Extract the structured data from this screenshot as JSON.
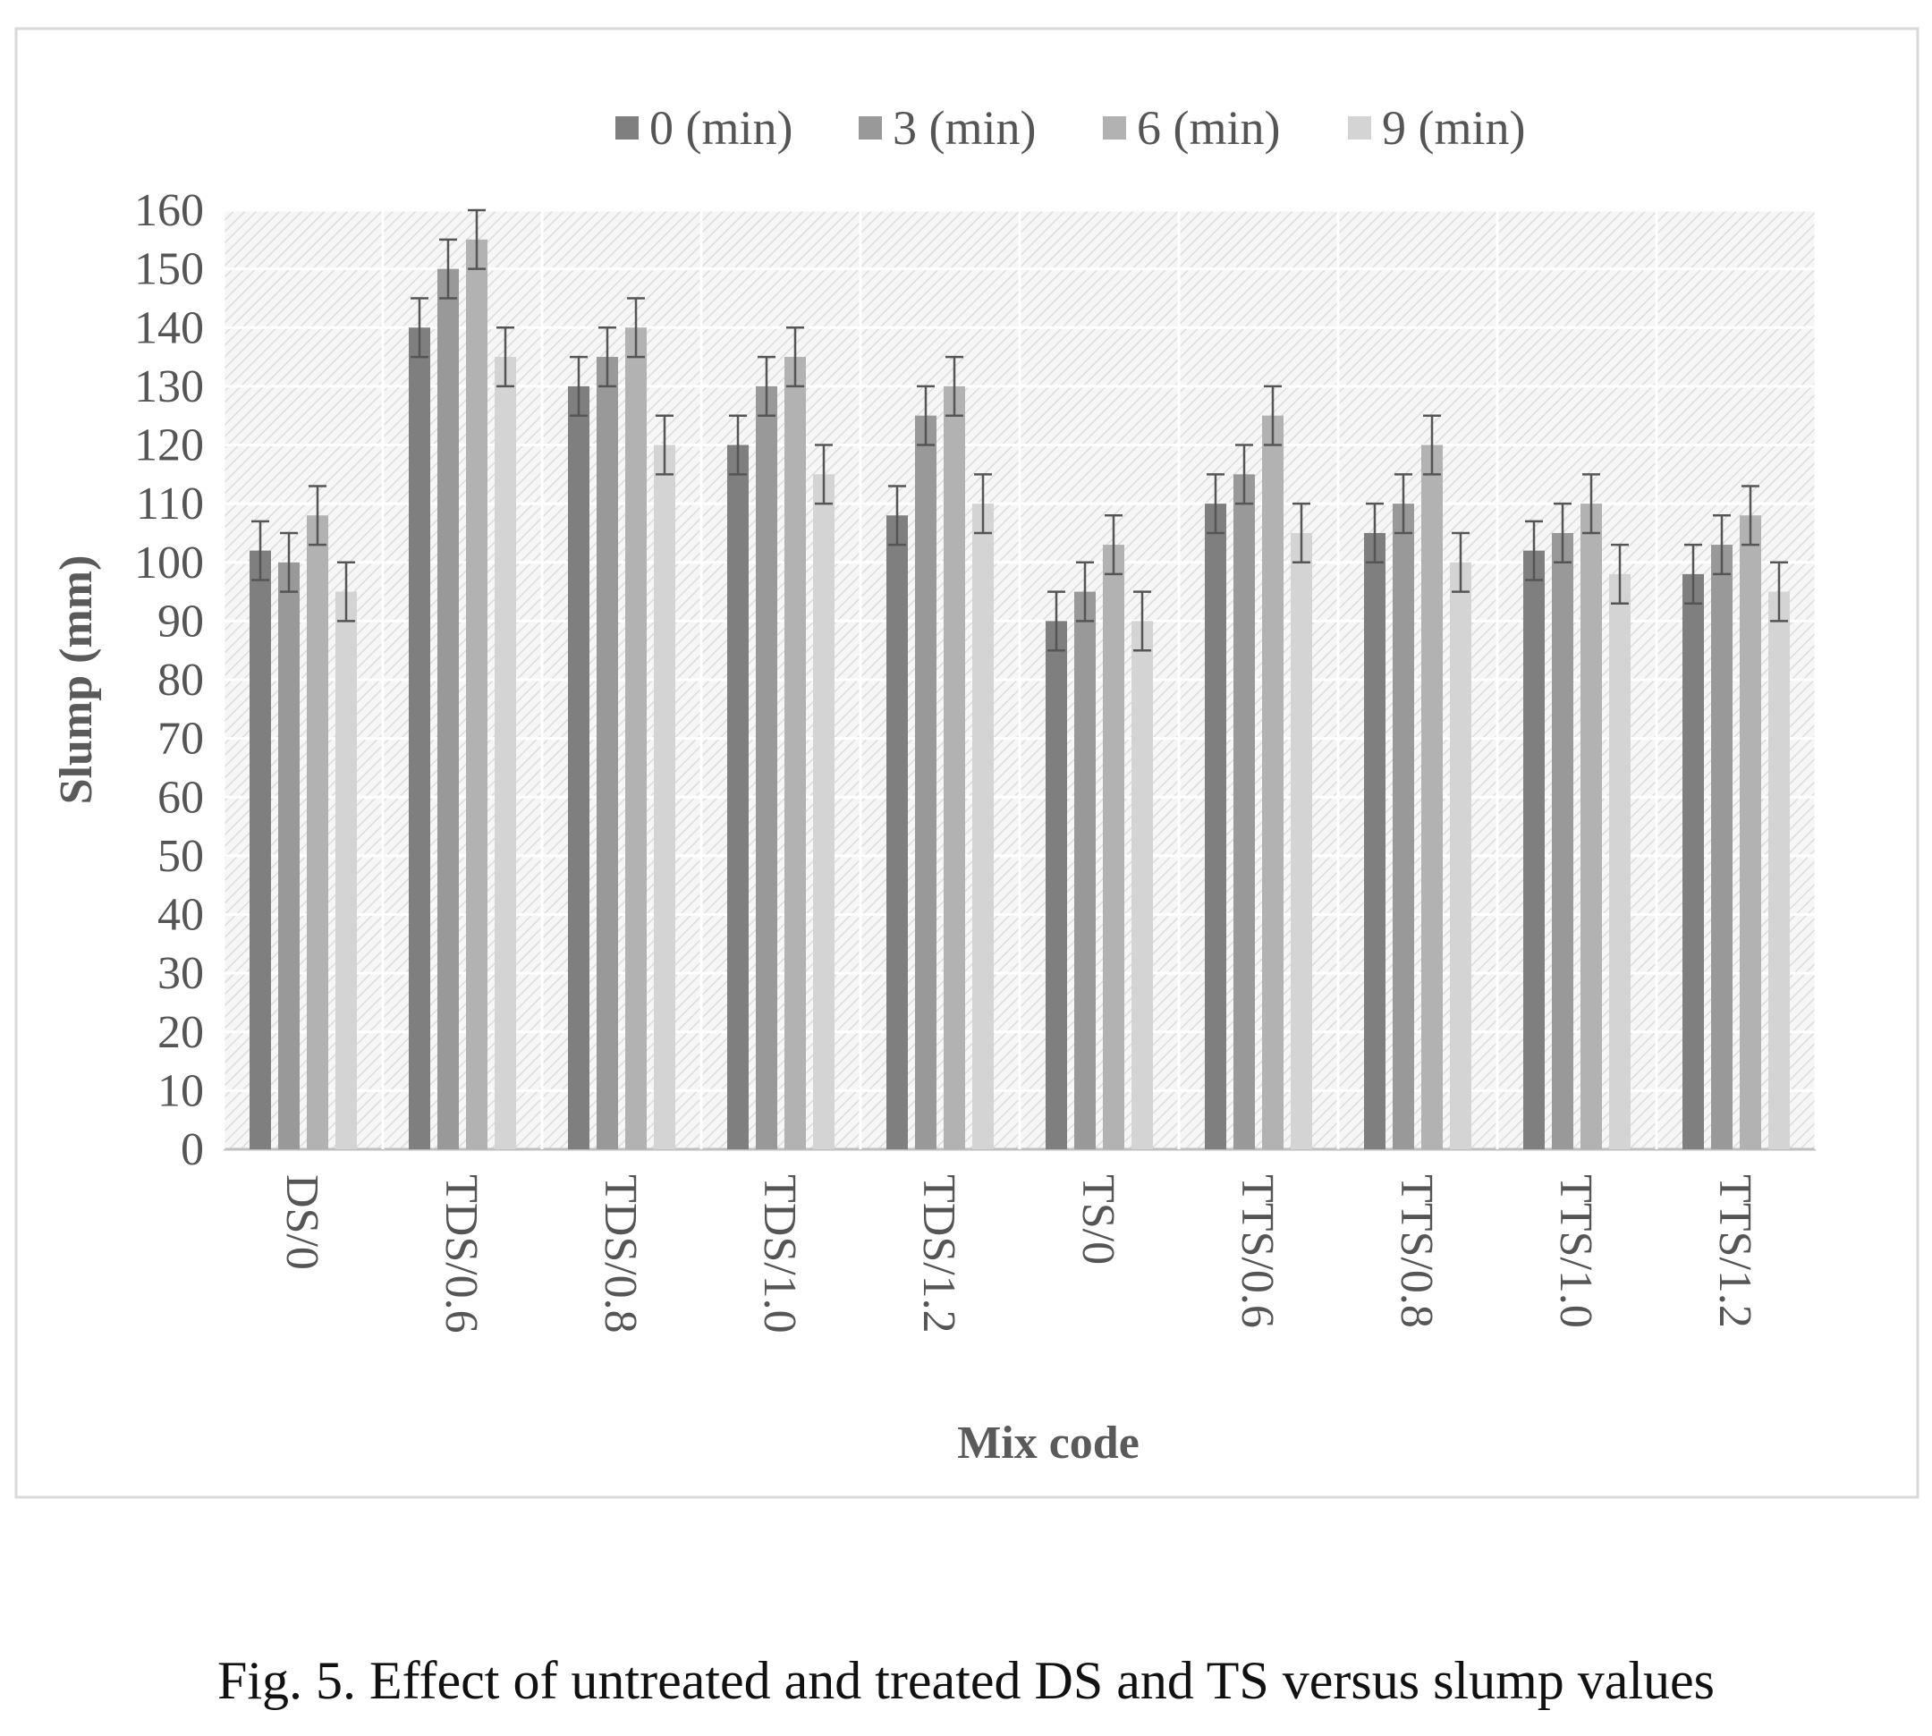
{
  "caption": "Fig. 5. Effect of untreated and treated DS and TS versus slump values",
  "chart_data": {
    "type": "bar",
    "xlabel": "Mix code",
    "ylabel": "Slump (mm)",
    "ylim": [
      0,
      160
    ],
    "yticks": [
      0,
      10,
      20,
      30,
      40,
      50,
      60,
      70,
      80,
      90,
      100,
      110,
      120,
      130,
      140,
      150,
      160
    ],
    "grid": true,
    "legend_position": "top",
    "categories": [
      "DS/0",
      "TDS/0.6",
      "TDS/0.8",
      "TDS/1.0",
      "TDS/1.2",
      "TS/0",
      "TTS/0.6",
      "TTS/0.8",
      "TTS/1.0",
      "TTS/1.2"
    ],
    "series": [
      {
        "name": "0 (min)",
        "color": "#7f7f7f",
        "values": [
          102,
          140,
          130,
          120,
          108,
          90,
          110,
          105,
          102,
          98
        ]
      },
      {
        "name": "3 (min)",
        "color": "#999999",
        "values": [
          100,
          150,
          135,
          130,
          125,
          95,
          115,
          110,
          105,
          103
        ]
      },
      {
        "name": "6 (min)",
        "color": "#b2b2b2",
        "values": [
          108,
          155,
          140,
          135,
          130,
          103,
          125,
          120,
          110,
          108
        ]
      },
      {
        "name": "9 (min)",
        "color": "#d4d4d4",
        "values": [
          95,
          135,
          120,
          115,
          110,
          90,
          105,
          100,
          98,
          95
        ]
      }
    ],
    "error_bar": 5
  }
}
